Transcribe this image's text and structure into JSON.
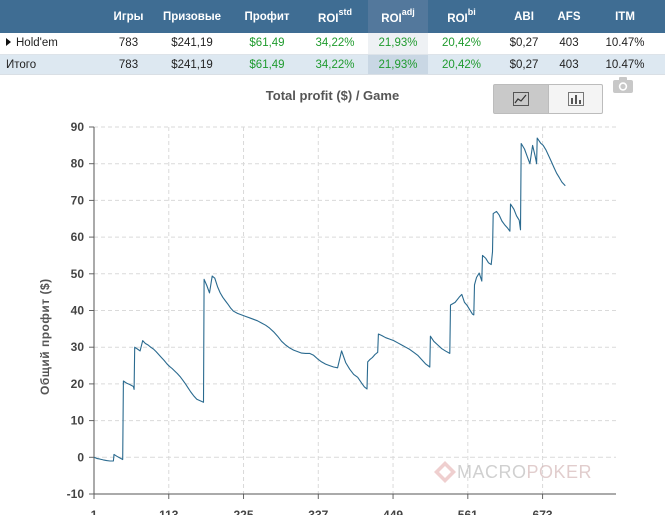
{
  "table": {
    "headers": {
      "games": "Игры",
      "prize": "Призовые",
      "profit": "Профит",
      "roi_std": {
        "base": "ROI",
        "sup": "std"
      },
      "roi_adj": {
        "base": "ROI",
        "sup": "adj"
      },
      "roi_bi": {
        "base": "ROI",
        "sup": "bi"
      },
      "abi": "ABI",
      "afs": "AFS",
      "itm": "ITM"
    },
    "rows": [
      {
        "name": "Hold'em",
        "games": "783",
        "prize": "$241,19",
        "profit": "$61,49",
        "roi_std": "34,22%",
        "roi_adj": "21,93%",
        "roi_bi": "20,42%",
        "abi": "$0,27",
        "afs": "403",
        "itm": "10.47%"
      },
      {
        "name": "Итого",
        "games": "783",
        "prize": "$241,19",
        "profit": "$61,49",
        "roi_std": "34,22%",
        "roi_adj": "21,93%",
        "roi_bi": "20,42%",
        "abi": "$0,27",
        "afs": "403",
        "itm": "10.47%"
      }
    ]
  },
  "controls": {
    "line_toggle_icon": "line-chart-icon",
    "bar_toggle_icon": "bar-chart-icon",
    "export_icon": "camera-icon"
  },
  "watermark": {
    "part1": "MACRO",
    "part2": "POKER"
  },
  "colors": {
    "header_bg": "#3f6d93",
    "profit_green": "#1f9b2e",
    "line": "#2a6a8f",
    "grid": "#dadada"
  },
  "chart_data": {
    "type": "line",
    "title": "Total profit ($) / Game",
    "xlabel": "",
    "ylabel": "Общий профит ($)",
    "xlim": [
      1,
      783
    ],
    "ylim": [
      -10,
      90
    ],
    "xticks": [
      1,
      113,
      225,
      337,
      449,
      561,
      673
    ],
    "yticks": [
      -10,
      0,
      10,
      20,
      30,
      40,
      50,
      60,
      70,
      80,
      90
    ],
    "grid": true,
    "series": [
      {
        "values": [
          [
            1,
            0
          ],
          [
            5,
            -0.3
          ],
          [
            10,
            -0.5
          ],
          [
            15,
            -0.7
          ],
          [
            20,
            -0.9
          ],
          [
            25,
            -1.0
          ],
          [
            30,
            -1.0
          ],
          [
            31,
            0.8
          ],
          [
            35,
            0.3
          ],
          [
            40,
            -0.2
          ],
          [
            44,
            -0.6
          ],
          [
            45,
            20.8
          ],
          [
            50,
            20.2
          ],
          [
            55,
            19.8
          ],
          [
            60,
            19.3
          ],
          [
            61,
            18.5
          ],
          [
            62,
            30.0
          ],
          [
            66,
            29.5
          ],
          [
            70,
            29.0
          ],
          [
            74,
            31.8
          ],
          [
            78,
            31.0
          ],
          [
            82,
            30.6
          ],
          [
            86,
            30.0
          ],
          [
            90,
            29.5
          ],
          [
            94,
            28.8
          ],
          [
            98,
            28.0
          ],
          [
            102,
            27.2
          ],
          [
            106,
            26.4
          ],
          [
            110,
            25.5
          ],
          [
            114,
            24.8
          ],
          [
            118,
            24.2
          ],
          [
            122,
            23.5
          ],
          [
            126,
            22.8
          ],
          [
            130,
            22.0
          ],
          [
            134,
            21.0
          ],
          [
            138,
            20.0
          ],
          [
            142,
            18.9
          ],
          [
            146,
            17.8
          ],
          [
            150,
            16.8
          ],
          [
            155,
            15.8
          ],
          [
            165,
            15.0
          ],
          [
            166,
            48.5
          ],
          [
            170,
            46.8
          ],
          [
            174,
            44.8
          ],
          [
            178,
            49.4
          ],
          [
            182,
            48.8
          ],
          [
            186,
            46.5
          ],
          [
            190,
            44.8
          ],
          [
            194,
            43.6
          ],
          [
            198,
            42.6
          ],
          [
            202,
            41.6
          ],
          [
            206,
            40.6
          ],
          [
            210,
            39.8
          ],
          [
            216,
            39.2
          ],
          [
            222,
            38.8
          ],
          [
            228,
            38.4
          ],
          [
            234,
            38.0
          ],
          [
            240,
            37.6
          ],
          [
            246,
            37.2
          ],
          [
            252,
            36.6
          ],
          [
            258,
            36.0
          ],
          [
            264,
            35.2
          ],
          [
            270,
            34.2
          ],
          [
            276,
            33.0
          ],
          [
            282,
            31.6
          ],
          [
            288,
            30.6
          ],
          [
            294,
            29.8
          ],
          [
            300,
            29.2
          ],
          [
            306,
            28.8
          ],
          [
            312,
            28.4
          ],
          [
            318,
            28.3
          ],
          [
            324,
            28.3
          ],
          [
            330,
            27.8
          ],
          [
            336,
            26.8
          ],
          [
            342,
            26.0
          ],
          [
            348,
            25.4
          ],
          [
            354,
            25.0
          ],
          [
            360,
            24.6
          ],
          [
            366,
            24.4
          ],
          [
            372,
            29.0
          ],
          [
            378,
            25.8
          ],
          [
            384,
            24.0
          ],
          [
            390,
            22.6
          ],
          [
            396,
            21.8
          ],
          [
            402,
            20.2
          ],
          [
            406,
            19.2
          ],
          [
            410,
            18.6
          ],
          [
            411,
            26.0
          ],
          [
            414,
            26.6
          ],
          [
            418,
            27.2
          ],
          [
            422,
            28.0
          ],
          [
            426,
            28.6
          ],
          [
            427,
            33.6
          ],
          [
            432,
            33.2
          ],
          [
            438,
            32.6
          ],
          [
            444,
            32.2
          ],
          [
            450,
            31.8
          ],
          [
            456,
            31.2
          ],
          [
            462,
            30.6
          ],
          [
            468,
            30.0
          ],
          [
            474,
            29.4
          ],
          [
            480,
            28.6
          ],
          [
            486,
            27.8
          ],
          [
            492,
            26.6
          ],
          [
            498,
            25.4
          ],
          [
            504,
            24.6
          ],
          [
            505,
            33.0
          ],
          [
            510,
            31.6
          ],
          [
            516,
            30.6
          ],
          [
            522,
            29.6
          ],
          [
            528,
            28.9
          ],
          [
            534,
            28.3
          ],
          [
            535,
            41.5
          ],
          [
            542,
            42.2
          ],
          [
            548,
            43.6
          ],
          [
            552,
            44.4
          ],
          [
            556,
            42.2
          ],
          [
            560,
            41.4
          ],
          [
            564,
            40.2
          ],
          [
            568,
            39.0
          ],
          [
            570,
            38.8
          ],
          [
            571,
            47.0
          ],
          [
            574,
            49.0
          ],
          [
            578,
            50.2
          ],
          [
            582,
            48.0
          ],
          [
            583,
            55.0
          ],
          [
            588,
            54.2
          ],
          [
            592,
            53.0
          ],
          [
            596,
            52.5
          ],
          [
            598,
            56.0
          ],
          [
            599,
            66.4
          ],
          [
            604,
            67.0
          ],
          [
            608,
            66.0
          ],
          [
            612,
            64.4
          ],
          [
            616,
            63.4
          ],
          [
            620,
            62.6
          ],
          [
            624,
            61.6
          ],
          [
            625,
            69.0
          ],
          [
            630,
            67.6
          ],
          [
            634,
            65.8
          ],
          [
            638,
            64.6
          ],
          [
            640,
            62.0
          ],
          [
            641,
            85.5
          ],
          [
            646,
            84.0
          ],
          [
            650,
            82.0
          ],
          [
            654,
            80.0
          ],
          [
            658,
            85.0
          ],
          [
            662,
            82.0
          ],
          [
            664,
            80.0
          ],
          [
            665,
            87.0
          ],
          [
            670,
            85.6
          ],
          [
            674,
            85.0
          ],
          [
            678,
            83.8
          ],
          [
            682,
            82.2
          ],
          [
            686,
            80.6
          ],
          [
            690,
            79.0
          ],
          [
            694,
            77.4
          ],
          [
            698,
            76.2
          ],
          [
            702,
            75.0
          ],
          [
            707,
            74.0
          ]
        ]
      }
    ]
  }
}
